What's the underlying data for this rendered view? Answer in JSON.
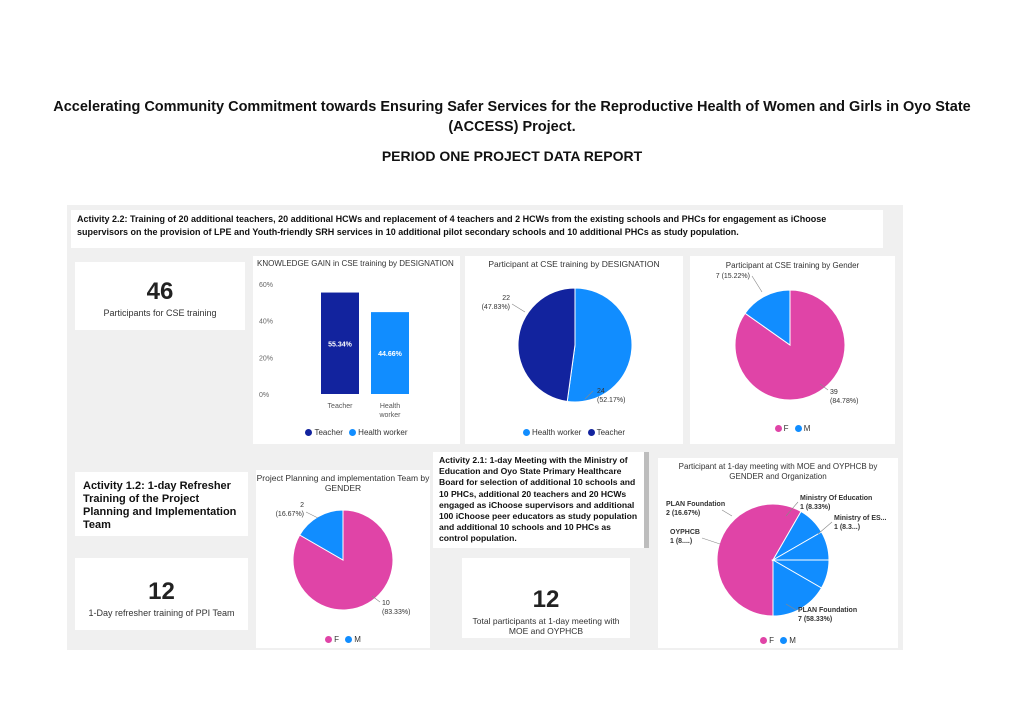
{
  "header": {
    "title": "Accelerating Community Commitment towards Ensuring Safer Services for the Reproductive Health of Women and Girls in Oyo State (ACCESS) Project.",
    "subtitle": "PERIOD ONE PROJECT DATA REPORT"
  },
  "activity_2_2": {
    "label": "Activity  2.2:",
    "text": "Training of 20 additional teachers, 20 additional HCWs and replacement of 4 teachers and 2 HCWs from the existing schools and PHCs for engagement as iChoose supervisors on the provision of LPE and Youth-friendly SRH services in 10 additional pilot secondary schools and 10 additional PHCs as study population."
  },
  "kpi_cse": {
    "value": "46",
    "label": "Participants for CSE training"
  },
  "activity_1_2": {
    "text": "Activity  1.2: 1-day Refresher Training of the Project Planning and Implementation Team"
  },
  "kpi_ppi": {
    "value": "12",
    "label": "1-Day refresher training  of PPI Team"
  },
  "activity_2_1": {
    "text": "Activity 2.1: 1-day Meeting with the Ministry of Education and Oyo State Primary Healthcare Board for selection of additional 10 schools and 10 PHCs, additional 20 teachers and 20 HCWs engaged as iChoose supervisors and additional 100 iChoose peer educators as study population and additional 10 schools and 10 PHCs as control population."
  },
  "kpi_moe": {
    "value": "12",
    "label": "Total participants at 1-day meeting with MOE and OYPHCB"
  },
  "chart_data": [
    {
      "type": "bar",
      "title": "KNOWLEDGE GAIN in CSE training by DESIGNATION",
      "categories": [
        "Teacher",
        "Health worker"
      ],
      "values": [
        55.34,
        44.66
      ],
      "data_labels": [
        "55.34%",
        "44.66%"
      ],
      "y_ticks": [
        "0%",
        "20%",
        "40%",
        "60%"
      ],
      "ylim": [
        0,
        60
      ],
      "legend": [
        "Teacher",
        "Health worker"
      ],
      "colors": [
        "#12239e",
        "#118dff"
      ],
      "legend_position": "bottom"
    },
    {
      "type": "pie",
      "title": "Participant at CSE training by DESIGNATION",
      "categories": [
        "Health worker",
        "Teacher"
      ],
      "values": [
        24,
        22
      ],
      "labels": [
        [
          "24",
          "(52.17%)"
        ],
        [
          "22",
          "(47.83%)"
        ]
      ],
      "legend": [
        "Health worker",
        "Teacher"
      ],
      "colors": [
        "#118dff",
        "#12239e"
      ],
      "legend_position": "bottom"
    },
    {
      "type": "pie",
      "title": "Participant at CSE training by Gender",
      "categories": [
        "F",
        "M"
      ],
      "values": [
        39,
        7
      ],
      "labels": [
        [
          "39",
          "(84.78%)"
        ],
        [
          "7 (15.22%)"
        ]
      ],
      "legend": [
        "F",
        "M"
      ],
      "colors": [
        "#e044a7",
        "#118dff"
      ],
      "legend_position": "bottom"
    },
    {
      "type": "pie",
      "title": "Project Planning and implementation Team by GENDER",
      "categories": [
        "F",
        "M"
      ],
      "values": [
        10,
        2
      ],
      "labels": [
        [
          "10",
          "(83.33%)"
        ],
        [
          "2",
          "(16.67%)"
        ]
      ],
      "legend": [
        "F",
        "M"
      ],
      "colors": [
        "#e044a7",
        "#118dff"
      ],
      "legend_position": "bottom"
    },
    {
      "type": "pie",
      "title": "Participant at 1-day meeting with MOE and OYPHCB by GENDER and Organization",
      "categories": [
        "PLAN Foundation",
        "Ministry Of Education",
        "Ministry of ES...",
        "OYPHCB",
        "PLAN Foundation"
      ],
      "values": [
        7,
        1,
        1,
        1,
        2
      ],
      "genders": [
        "F",
        "M",
        "M",
        "M",
        "M"
      ],
      "labels": [
        [
          "PLAN Foundation",
          "7 (58.33%)"
        ],
        [
          "Ministry Of Education",
          "1 (8.33%)"
        ],
        [
          "Ministry of ES...",
          "1 (8.3...)"
        ],
        [
          "OYPHCB",
          "1 (8....)"
        ],
        [
          "PLAN Foundation",
          "2 (16.67%)"
        ]
      ],
      "legend": [
        "F",
        "M"
      ],
      "colors": [
        "#e044a7",
        "#118dff"
      ],
      "legend_position": "bottom"
    }
  ]
}
